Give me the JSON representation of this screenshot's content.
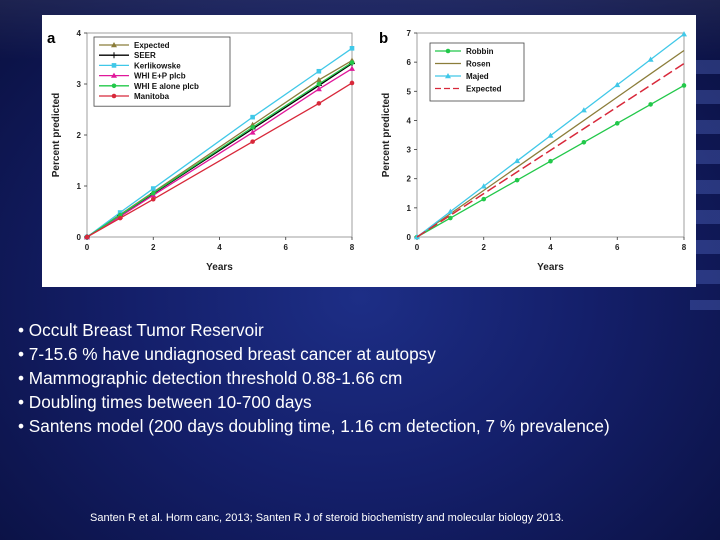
{
  "slide": {
    "bullets": [
      "• Occult Breast Tumor Reservoir",
      "• 7-15.6 % have undiagnosed breast cancer at autopsy",
      "• Mammographic detection threshold 0.88-1.66 cm",
      "• Doubling times between 10-700 days",
      "• Santens model (200 days doubling time, 1.16 cm detection, 7 % prevalence)"
    ],
    "reference": "Santen R et al. Horm canc, 2013; Santen R J of steroid biochemistry and molecular biology 2013."
  },
  "chart_data": [
    {
      "type": "line",
      "panel_label": "a",
      "title": "",
      "xlabel": "Years",
      "ylabel": "Percent predicted",
      "xlim": [
        0,
        8
      ],
      "ylim": [
        0,
        4
      ],
      "x_ticks": [
        0,
        2,
        4,
        6,
        8
      ],
      "y_ticks": [
        0,
        1,
        2,
        3,
        4
      ],
      "legend_position": "top-left",
      "series": [
        {
          "name": "Expected",
          "color": "#8b7d3a",
          "marker": "triangle",
          "x": [
            0,
            1,
            2,
            5,
            7,
            8
          ],
          "y": [
            0,
            0.44,
            0.88,
            2.2,
            3.08,
            3.46
          ]
        },
        {
          "name": "SEER",
          "color": "#000000",
          "marker": "plus",
          "x": [
            0,
            1,
            2,
            5,
            7,
            8
          ],
          "y": [
            0,
            0.42,
            0.85,
            2.12,
            2.97,
            3.4
          ]
        },
        {
          "name": "Kerlikowske",
          "color": "#40c8e8",
          "marker": "square",
          "x": [
            0,
            1,
            2,
            5,
            7,
            8
          ],
          "y": [
            0,
            0.48,
            0.95,
            2.35,
            3.25,
            3.7
          ]
        },
        {
          "name": "WHI E+P plcb",
          "color": "#e0189a",
          "marker": "triangle",
          "x": [
            0,
            1,
            2,
            5,
            7,
            8
          ],
          "y": [
            0,
            0.4,
            0.82,
            2.05,
            2.9,
            3.3
          ]
        },
        {
          "name": "WHI E alone plcb",
          "color": "#22c84a",
          "marker": "circle",
          "x": [
            0,
            1,
            2,
            5,
            7,
            8
          ],
          "y": [
            0,
            0.43,
            0.86,
            2.15,
            3.0,
            3.42
          ]
        },
        {
          "name": "Manitoba",
          "color": "#d8283a",
          "marker": "circle",
          "x": [
            0,
            1,
            2,
            5,
            7,
            8
          ],
          "y": [
            0,
            0.37,
            0.74,
            1.87,
            2.62,
            3.02
          ]
        }
      ]
    },
    {
      "type": "line",
      "panel_label": "b",
      "title": "",
      "xlabel": "Years",
      "ylabel": "Percent predicted",
      "xlim": [
        0,
        8
      ],
      "ylim": [
        0,
        7
      ],
      "x_ticks": [
        0,
        2,
        4,
        6,
        8
      ],
      "y_ticks": [
        0,
        1,
        2,
        3,
        4,
        5,
        6,
        7
      ],
      "legend_position": "top-left",
      "series": [
        {
          "name": "Robbin",
          "color": "#22c84a",
          "marker": "circle",
          "x": [
            0,
            1,
            2,
            3,
            4,
            5,
            6,
            7,
            8
          ],
          "y": [
            0,
            0.65,
            1.3,
            1.95,
            2.6,
            3.25,
            3.9,
            4.55,
            5.2
          ]
        },
        {
          "name": "Rosen",
          "color": "#8b7d3a",
          "marker": "none",
          "x": [
            0,
            8
          ],
          "y": [
            0,
            6.4
          ]
        },
        {
          "name": "Majed",
          "color": "#40c8e8",
          "marker": "triangle",
          "x": [
            0,
            1,
            2,
            3,
            4,
            5,
            6,
            7,
            8
          ],
          "y": [
            0,
            0.87,
            1.74,
            2.61,
            3.48,
            4.35,
            5.22,
            6.09,
            6.96
          ]
        },
        {
          "name": "Expected",
          "color": "#d8283a",
          "marker": "dash",
          "x": [
            0,
            8
          ],
          "y": [
            0,
            5.95
          ]
        }
      ]
    }
  ]
}
